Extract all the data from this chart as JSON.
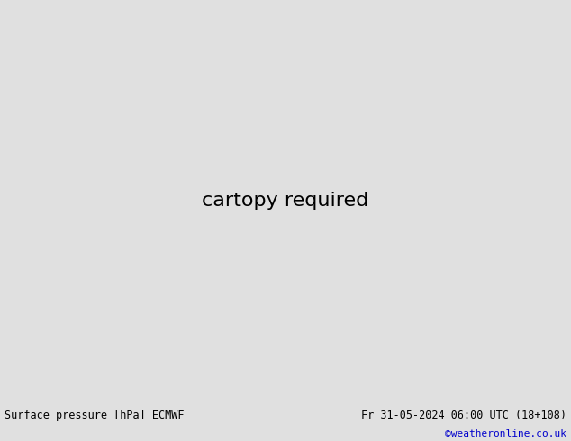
{
  "title_left": "Surface pressure [hPa] ECMWF",
  "title_right": "Fr 31-05-2024 06:00 UTC (18+108)",
  "copyright": "©weatheronline.co.uk",
  "bg_ocean": "#d0dde8",
  "bg_land": "#b8e0a0",
  "bg_land_dark": "#98c880",
  "coast_color": "#808080",
  "bottom_bar_color": "#e0e0e0",
  "bottom_text_color": "#000000",
  "copyright_color": "#0000cc",
  "figsize": [
    6.34,
    4.9
  ],
  "dpi": 100,
  "lon_min": 88,
  "lon_max": 175,
  "lat_min": -15,
  "lat_max": 55
}
